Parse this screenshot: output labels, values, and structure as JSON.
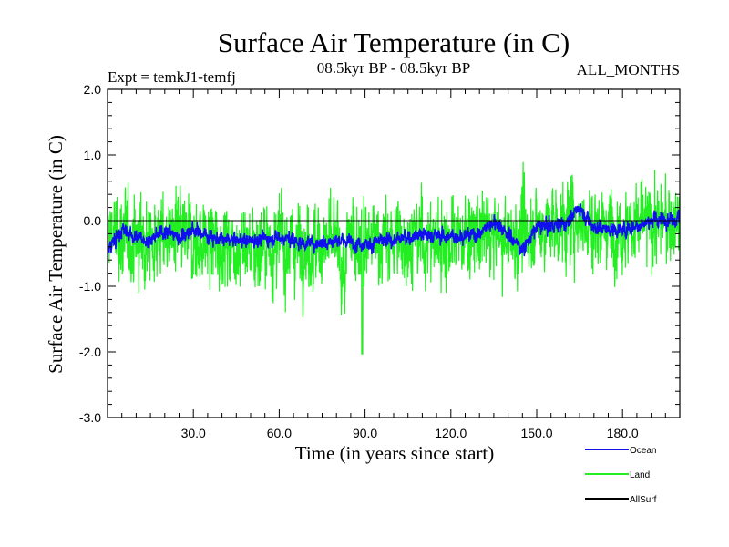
{
  "chart_data": {
    "type": "line",
    "title": "Surface Air Temperature (in C)",
    "subtitle_left": "Expt = temkJ1-temfj",
    "subtitle_center": "08.5kyr BP - 08.5kyr BP",
    "subtitle_right": "ALL_MONTHS",
    "xlabel": "Time (in years since start)",
    "ylabel": "Surface Air Temperature (in C)",
    "xlim": [
      0,
      200
    ],
    "ylim": [
      -3.0,
      2.0
    ],
    "xticks": [
      30,
      60,
      90,
      120,
      150,
      180
    ],
    "xtick_labels": [
      "30.0",
      "60.0",
      "90.0",
      "120.0",
      "150.0",
      "180.0"
    ],
    "yticks": [
      2.0,
      1.0,
      0.0,
      -1.0,
      -2.0,
      -3.0
    ],
    "ytick_labels": [
      "2.0",
      "1.0",
      "0.0",
      "-1.0",
      "-2.0",
      "-3.0"
    ],
    "zero_line": true,
    "series": [
      {
        "name": "Land",
        "color": "#22ee22",
        "amplitude": 0.42,
        "x": [
          0,
          10,
          20,
          30,
          40,
          50,
          60,
          70,
          80,
          89,
          90,
          100,
          110,
          120,
          130,
          140,
          150,
          160,
          165,
          170,
          180,
          190,
          200
        ],
        "values": [
          -0.2,
          -0.3,
          -0.25,
          -0.3,
          -0.35,
          -0.4,
          -0.35,
          -0.4,
          -0.35,
          -2.0,
          -0.3,
          -0.3,
          -0.3,
          -0.3,
          -0.2,
          -0.3,
          -0.1,
          -0.05,
          0.05,
          -0.1,
          -0.1,
          -0.05,
          0.0
        ]
      },
      {
        "name": "Ocean",
        "color": "#1010ee",
        "amplitude": 0.09,
        "x": [
          0,
          5,
          10,
          15,
          20,
          25,
          30,
          40,
          50,
          60,
          70,
          80,
          90,
          100,
          110,
          120,
          130,
          135,
          140,
          145,
          150,
          160,
          165,
          170,
          180,
          190,
          200
        ],
        "values": [
          -0.45,
          -0.15,
          -0.25,
          -0.3,
          -0.15,
          -0.25,
          -0.15,
          -0.3,
          -0.3,
          -0.25,
          -0.35,
          -0.3,
          -0.35,
          -0.3,
          -0.2,
          -0.25,
          -0.2,
          0.0,
          -0.2,
          -0.45,
          -0.1,
          -0.05,
          0.2,
          -0.1,
          -0.15,
          0.0,
          0.05
        ]
      },
      {
        "name": "AllSurf",
        "color": "#000000",
        "amplitude": 0,
        "x": [],
        "values": []
      }
    ],
    "legend": {
      "position": "bottom-right",
      "entries": [
        {
          "label": "Ocean",
          "color": "#1010ee"
        },
        {
          "label": "Land",
          "color": "#22ee22"
        },
        {
          "label": "AllSurf",
          "color": "#000000"
        }
      ]
    }
  }
}
